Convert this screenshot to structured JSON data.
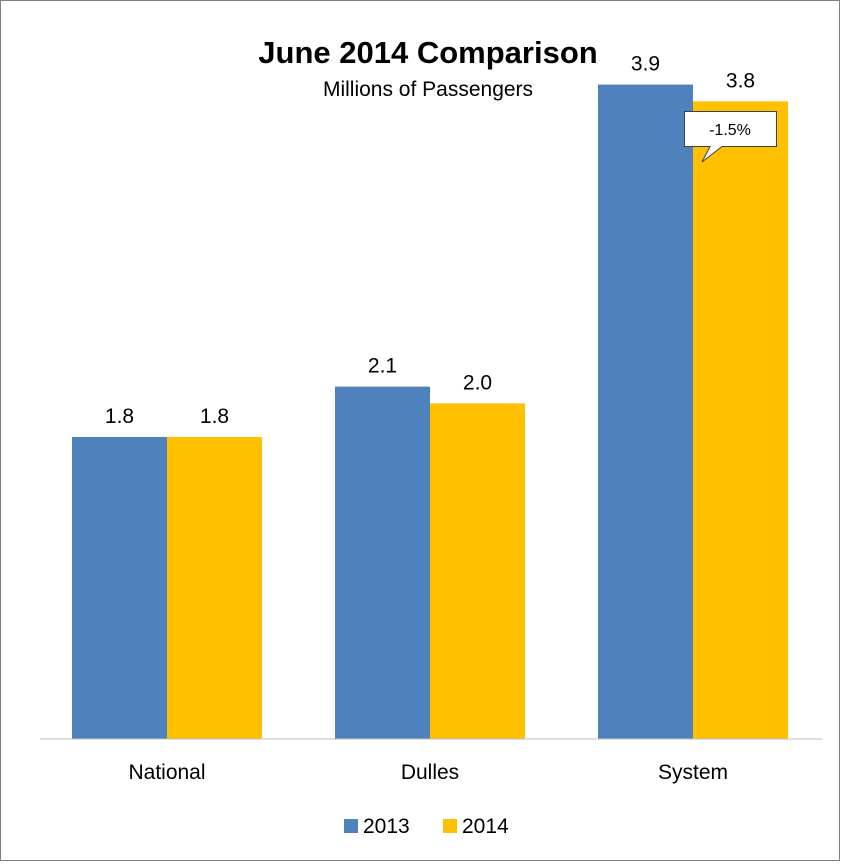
{
  "chart_data": {
    "type": "bar",
    "title": "June 2014 Comparison",
    "subtitle": "Millions of Passengers",
    "categories": [
      "National",
      "Dulles",
      "System"
    ],
    "series": [
      {
        "name": "2013",
        "color": "#4f81bd",
        "values": [
          1.8,
          2.1,
          3.9
        ],
        "labels": [
          "1.8",
          "2.1",
          "3.9"
        ]
      },
      {
        "name": "2014",
        "color": "#ffc000",
        "values": [
          1.8,
          2.0,
          3.8
        ],
        "labels": [
          "1.8",
          "2.0",
          "3.8"
        ]
      }
    ],
    "ylim": [
      0,
      4.1
    ],
    "grid": false,
    "legend": "bottom-center",
    "annotation": {
      "text": "-1.5%",
      "category": "System"
    }
  }
}
